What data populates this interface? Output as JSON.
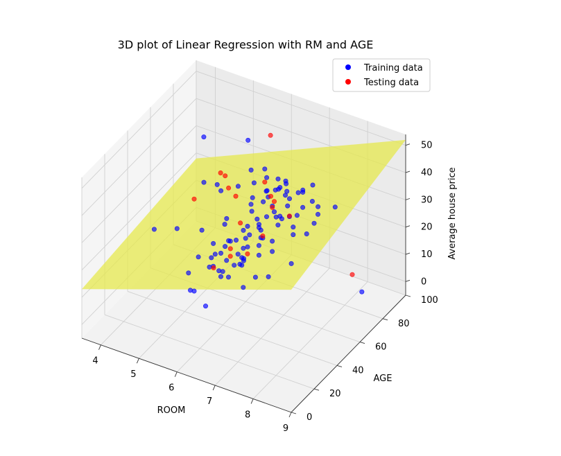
{
  "chart_data": {
    "type": "scatter",
    "title": "3D plot of Linear Regression with RM and AGE",
    "x_axis": {
      "label": "ROOM",
      "range": [
        3.5,
        9
      ],
      "ticks": [
        4,
        5,
        6,
        7,
        8,
        9
      ]
    },
    "y_axis": {
      "label": "AGE",
      "range": [
        0,
        100
      ],
      "ticks": [
        0,
        20,
        40,
        60,
        80,
        100
      ]
    },
    "z_axis": {
      "label": "Average house price",
      "range": [
        -5,
        54
      ],
      "ticks": [
        0,
        10,
        20,
        30,
        40,
        50
      ]
    },
    "grid": true,
    "legend_position": "top-right",
    "series": [
      {
        "name": "Training data",
        "color": "#0000ff",
        "points": [
          [
            4.0,
            90,
            16
          ],
          [
            4.2,
            95,
            14
          ],
          [
            4.6,
            85,
            18
          ],
          [
            4.9,
            90,
            19
          ],
          [
            5.0,
            98,
            22
          ],
          [
            5.2,
            94,
            20
          ],
          [
            5.3,
            100,
            23
          ],
          [
            5.4,
            86,
            19
          ],
          [
            5.5,
            95,
            23
          ],
          [
            5.6,
            78,
            21
          ],
          [
            5.6,
            92,
            20
          ],
          [
            5.7,
            88,
            22
          ],
          [
            5.7,
            96,
            19
          ],
          [
            5.8,
            72,
            22
          ],
          [
            5.8,
            95,
            24
          ],
          [
            5.9,
            65,
            20
          ],
          [
            5.9,
            92,
            22
          ],
          [
            5.9,
            83,
            23
          ],
          [
            6.0,
            58,
            22
          ],
          [
            6.0,
            90,
            24
          ],
          [
            6.0,
            96,
            20
          ],
          [
            6.0,
            42,
            23
          ],
          [
            6.0,
            70,
            21
          ],
          [
            6.1,
            80,
            22
          ],
          [
            6.1,
            35,
            24
          ],
          [
            6.1,
            92,
            25
          ],
          [
            6.1,
            60,
            20
          ],
          [
            6.2,
            45,
            25
          ],
          [
            6.2,
            88,
            23
          ],
          [
            6.2,
            25,
            24
          ],
          [
            6.3,
            75,
            23
          ],
          [
            6.3,
            50,
            24
          ],
          [
            6.3,
            96,
            21
          ],
          [
            6.4,
            30,
            25
          ],
          [
            6.4,
            65,
            26
          ],
          [
            6.4,
            85,
            24
          ],
          [
            6.5,
            20,
            26
          ],
          [
            6.5,
            55,
            28
          ],
          [
            6.5,
            45,
            24
          ],
          [
            6.6,
            38,
            27
          ],
          [
            6.6,
            70,
            25
          ],
          [
            6.6,
            90,
            26
          ],
          [
            6.7,
            15,
            27
          ],
          [
            6.7,
            50,
            29
          ],
          [
            6.8,
            30,
            28
          ],
          [
            6.8,
            60,
            30
          ],
          [
            6.9,
            20,
            30
          ],
          [
            6.9,
            80,
            31
          ],
          [
            7.0,
            40,
            32
          ],
          [
            7.0,
            25,
            30
          ],
          [
            7.1,
            55,
            33
          ],
          [
            7.2,
            15,
            34
          ],
          [
            7.2,
            35,
            35
          ],
          [
            7.3,
            45,
            36
          ],
          [
            7.4,
            25,
            34
          ],
          [
            7.5,
            60,
            37
          ],
          [
            7.6,
            30,
            38
          ],
          [
            7.8,
            45,
            42
          ],
          [
            7.9,
            20,
            40
          ],
          [
            8.0,
            35,
            43
          ],
          [
            8.2,
            50,
            45
          ],
          [
            8.3,
            25,
            46
          ],
          [
            8.5,
            40,
            48
          ],
          [
            8.7,
            30,
            50
          ],
          [
            8.8,
            45,
            50
          ],
          [
            5.5,
            60,
            23
          ],
          [
            5.8,
            40,
            20
          ],
          [
            6.0,
            30,
            24
          ],
          [
            6.2,
            65,
            21
          ],
          [
            6.4,
            40,
            23
          ],
          [
            6.6,
            25,
            22
          ],
          [
            6.8,
            45,
            26
          ],
          [
            7.0,
            65,
            29
          ],
          [
            6.3,
            85,
            30
          ],
          [
            6.1,
            72,
            27
          ],
          [
            5.9,
            50,
            21
          ],
          [
            6.5,
            80,
            24
          ],
          [
            6.7,
            35,
            25
          ],
          [
            7.1,
            20,
            31
          ],
          [
            5.7,
            55,
            18
          ],
          [
            4.5,
            30,
            27
          ],
          [
            4.9,
            60,
            50
          ],
          [
            5.1,
            92,
            36
          ],
          [
            5.4,
            20,
            36
          ],
          [
            6.2,
            12,
            33
          ],
          [
            6.9,
            10,
            32
          ],
          [
            7.7,
            12,
            33
          ],
          [
            8.6,
            75,
            5
          ],
          [
            8.4,
            20,
            38
          ],
          [
            8.1,
            10,
            36
          ],
          [
            7.5,
            8,
            30
          ],
          [
            5.0,
            75,
            12
          ],
          [
            5.3,
            55,
            15
          ],
          [
            5.9,
            15,
            18
          ],
          [
            6.6,
            5,
            20
          ],
          [
            6.0,
            10,
            27
          ],
          [
            6.4,
            15,
            29
          ],
          [
            7.3,
            70,
            22
          ],
          [
            5.6,
            35,
            30
          ],
          [
            6.8,
            92,
            28
          ],
          [
            7.0,
            85,
            26
          ],
          [
            6.3,
            5,
            24
          ]
        ]
      },
      {
        "name": "Testing data",
        "color": "#ff0000",
        "points": [
          [
            4.2,
            98,
            17
          ],
          [
            4.5,
            92,
            20
          ],
          [
            5.2,
            78,
            22
          ],
          [
            5.6,
            90,
            24
          ],
          [
            5.8,
            62,
            22
          ],
          [
            6.0,
            85,
            21
          ],
          [
            6.2,
            40,
            24
          ],
          [
            6.3,
            72,
            30
          ],
          [
            6.5,
            30,
            27
          ],
          [
            6.7,
            60,
            33
          ],
          [
            6.9,
            45,
            30
          ],
          [
            7.1,
            25,
            33
          ],
          [
            7.3,
            55,
            35
          ],
          [
            6.0,
            15,
            52
          ],
          [
            5.6,
            95,
            39
          ],
          [
            4.8,
            85,
            20
          ],
          [
            6.6,
            12,
            31
          ],
          [
            8.5,
            70,
            13
          ]
        ]
      }
    ],
    "regression_plane": {
      "color": "#e5e84e",
      "corners": [
        [
          3.5,
          0,
          13
        ],
        [
          9,
          0,
          40
        ],
        [
          9,
          100,
          52
        ],
        [
          3.5,
          100,
          18
        ]
      ]
    }
  }
}
